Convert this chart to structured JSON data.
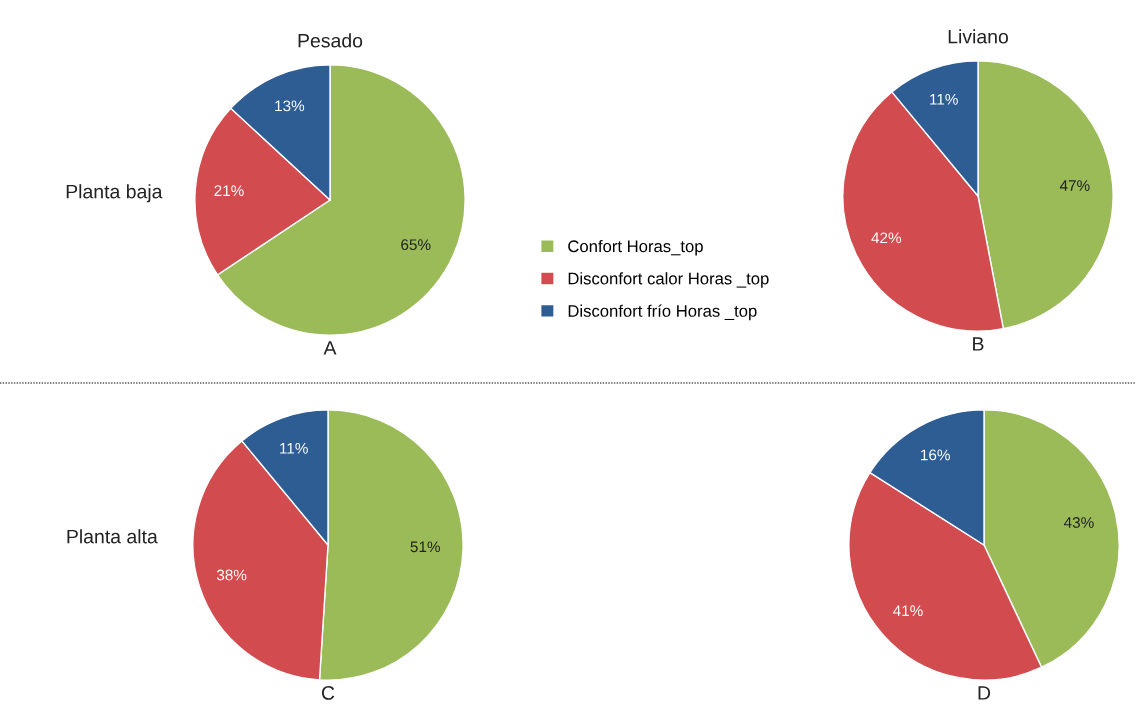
{
  "chart_data": [
    {
      "type": "pie",
      "title": "Pesado",
      "ylabel": "Planta baja",
      "xlabel": "A",
      "categories": [
        "Confort Horas_top",
        "Disconfort calor Horas _top",
        "Disconfort frío Horas _top"
      ],
      "values": [
        65,
        21,
        13
      ],
      "value_labels": [
        "65%",
        "21%",
        "13%"
      ],
      "colors": [
        "#9bbb59",
        "#d24b4e",
        "#2e5d94"
      ],
      "legend": "right"
    },
    {
      "type": "pie",
      "title": "Liviano",
      "xlabel": "B",
      "categories": [
        null,
        null,
        null
      ],
      "values": [
        47,
        42,
        11
      ],
      "value_labels": [
        "47%",
        "42%",
        "11%"
      ],
      "colors": [
        "#9bbb59",
        "#d24b4e",
        "#2e5d94"
      ]
    },
    {
      "type": "pie",
      "ylabel": "Planta alta",
      "xlabel": "C",
      "categories": [
        null,
        null,
        null
      ],
      "values": [
        51,
        38,
        11
      ],
      "value_labels": [
        "51%",
        "38%",
        "11%"
      ],
      "colors": [
        "#9bbb59",
        "#d24b4e",
        "#2e5d94"
      ]
    },
    {
      "type": "pie",
      "xlabel": "D",
      "categories": [
        null,
        null,
        null
      ],
      "values": [
        43,
        41,
        16
      ],
      "value_labels": [
        "43%",
        "41%",
        "16%"
      ],
      "colors": [
        "#9bbb59",
        "#d24b4e",
        "#2e5d94"
      ]
    }
  ]
}
